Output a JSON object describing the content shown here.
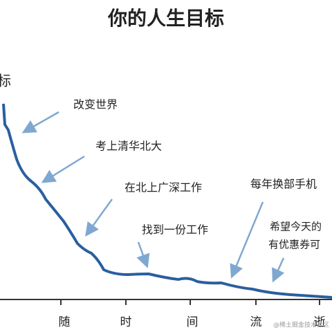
{
  "title": "你的人生目标",
  "y_label": "目标",
  "x_labels": [
    "随",
    "时",
    "间",
    "流",
    "逝"
  ],
  "annotations": [
    "改变世界",
    "考上清华北大",
    "在北上广深工作",
    "找到一份工作",
    "每年换部手机",
    "希望今天的",
    "有优惠券可"
  ],
  "watermark": "@稀土掘金技术社区"
}
